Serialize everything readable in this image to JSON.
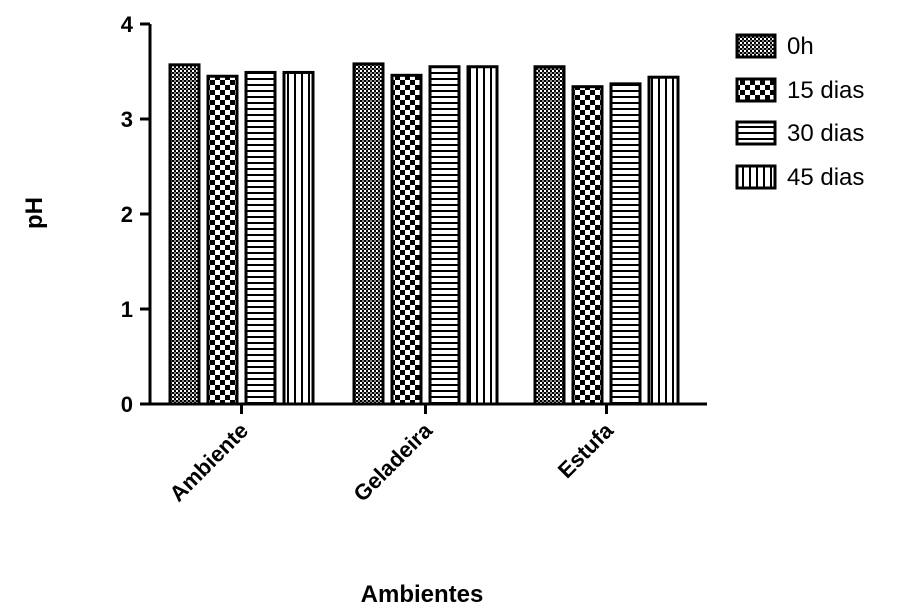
{
  "chart_data": {
    "type": "bar",
    "categories": [
      "Ambiente",
      "Geladeira",
      "Estufa"
    ],
    "series": [
      {
        "name": "0h",
        "values": [
          3.57,
          3.58,
          3.55
        ],
        "pattern": "checker-fine"
      },
      {
        "name": "15 dias",
        "values": [
          3.45,
          3.46,
          3.34
        ],
        "pattern": "checker-coarse"
      },
      {
        "name": "30 dias",
        "values": [
          3.49,
          3.55,
          3.37
        ],
        "pattern": "horizontal-lines"
      },
      {
        "name": "45 dias",
        "values": [
          3.49,
          3.55,
          3.44
        ],
        "pattern": "vertical-lines"
      }
    ],
    "xlabel": "Ambientes",
    "ylabel": "pH",
    "ylim": [
      0,
      4
    ],
    "yticks": [
      0,
      1,
      2,
      3,
      4
    ],
    "legend_position": "top-right",
    "grid": false
  }
}
